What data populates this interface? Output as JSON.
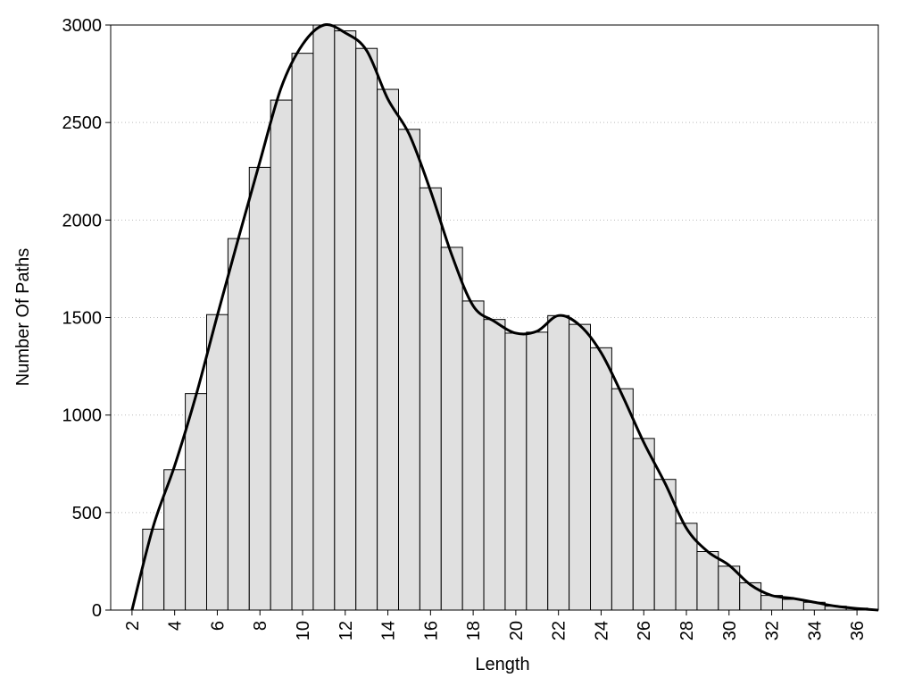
{
  "chart_data": {
    "type": "histogram",
    "x_label": "Length",
    "y_label": "Number Of Paths",
    "bins": [
      2.5,
      3.5,
      4.5,
      5.5,
      6.5,
      7.5,
      8.5,
      9.5,
      10.5,
      11.5,
      12.5,
      13.5,
      14.5,
      15.5,
      16.5,
      17.5,
      18.5,
      19.5,
      20.5,
      21.5,
      22.5,
      23.5,
      24.5,
      25.5,
      26.5,
      27.5,
      28.5,
      29.5,
      30.5,
      31.5,
      32.5,
      33.5,
      34.5,
      35.5,
      36.5
    ],
    "values": [
      415,
      720,
      1110,
      1515,
      1905,
      2270,
      2615,
      2855,
      3000,
      2970,
      2880,
      2670,
      2465,
      2165,
      1860,
      1585,
      1490,
      1420,
      1425,
      1510,
      1465,
      1345,
      1135,
      880,
      670,
      445,
      300,
      225,
      140,
      75,
      55,
      40,
      20,
      10
    ],
    "color": "#e0e0e0",
    "curve": {
      "x": [
        2,
        3,
        4,
        5,
        6,
        7,
        8,
        9,
        10,
        11,
        12,
        13,
        14,
        15,
        16,
        17,
        18,
        19,
        20,
        21,
        22,
        23,
        24,
        25,
        26,
        27,
        28,
        29,
        30,
        31,
        32,
        33,
        34,
        35,
        36,
        37
      ],
      "values": [
        0,
        430,
        740,
        1100,
        1510,
        1910,
        2300,
        2680,
        2900,
        3000,
        2960,
        2870,
        2620,
        2440,
        2150,
        1820,
        1560,
        1480,
        1420,
        1430,
        1510,
        1460,
        1320,
        1100,
        860,
        650,
        420,
        300,
        230,
        130,
        75,
        60,
        40,
        20,
        8,
        0
      ],
      "color": "#000000"
    },
    "xlim": [
      1,
      37
    ],
    "ylim": [
      0,
      3000
    ],
    "xticks": [
      2,
      4,
      6,
      8,
      10,
      12,
      14,
      16,
      18,
      20,
      22,
      24,
      26,
      28,
      30,
      32,
      34,
      36
    ],
    "yticks": [
      0,
      500,
      1000,
      1500,
      2000,
      2500,
      3000
    ],
    "grid": true
  }
}
